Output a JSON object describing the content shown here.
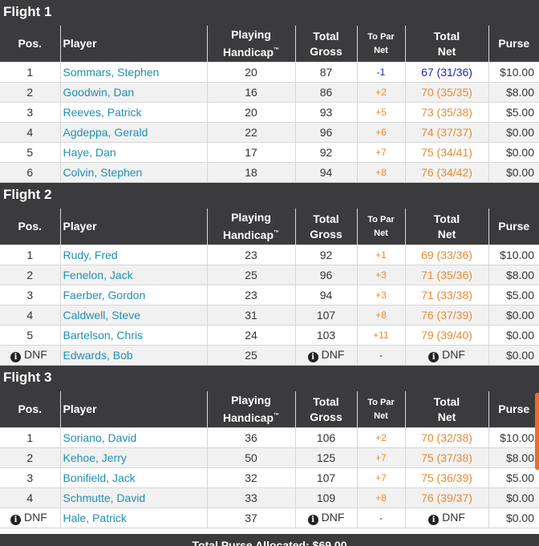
{
  "headers": {
    "pos": "Pos.",
    "player": "Player",
    "handicap_line1": "Playing",
    "handicap_line2": "Handicap",
    "handicap_tm": "™",
    "gross_line1": "Total",
    "gross_line2": "Gross",
    "topar_line1": "To Par",
    "topar_line2": "Net",
    "net_line1": "Total",
    "net_line2": "Net",
    "purse": "Purse"
  },
  "info_glyph": "i",
  "colors": {
    "header_bg": "#3b3b3d",
    "player_link": "#1f8fb3",
    "under_par": "#1e24b5",
    "over_par": "#e88b2f",
    "scroll_indicator": "#f06a2a"
  },
  "flights": [
    {
      "title": "Flight 1",
      "rows": [
        {
          "pos": "1",
          "player": "Sommars, Stephen",
          "handicap": "20",
          "gross": "87",
          "topar": "-1",
          "net": "67 (31/36)",
          "purse": "$10.00"
        },
        {
          "pos": "2",
          "player": "Goodwin, Dan",
          "handicap": "16",
          "gross": "86",
          "topar": "+2",
          "net": "70 (35/35)",
          "purse": "$8.00"
        },
        {
          "pos": "3",
          "player": "Reeves, Patrick",
          "handicap": "20",
          "gross": "93",
          "topar": "+5",
          "net": "73 (35/38)",
          "purse": "$5.00"
        },
        {
          "pos": "4",
          "player": "Agdeppa, Gerald",
          "handicap": "22",
          "gross": "96",
          "topar": "+6",
          "net": "74 (37/37)",
          "purse": "$0.00"
        },
        {
          "pos": "5",
          "player": "Haye, Dan",
          "handicap": "17",
          "gross": "92",
          "topar": "+7",
          "net": "75 (34/41)",
          "purse": "$0.00"
        },
        {
          "pos": "6",
          "player": "Colvin, Stephen",
          "handicap": "18",
          "gross": "94",
          "topar": "+8",
          "net": "76 (34/42)",
          "purse": "$0.00"
        }
      ]
    },
    {
      "title": "Flight 2",
      "rows": [
        {
          "pos": "1",
          "player": "Rudy, Fred",
          "handicap": "23",
          "gross": "92",
          "topar": "+1",
          "net": "69 (33/36)",
          "purse": "$10.00"
        },
        {
          "pos": "2",
          "player": "Fenelon, Jack",
          "handicap": "25",
          "gross": "96",
          "topar": "+3",
          "net": "71 (35/36)",
          "purse": "$8.00"
        },
        {
          "pos": "3",
          "player": "Faerber, Gordon",
          "handicap": "23",
          "gross": "94",
          "topar": "+3",
          "net": "71 (33/38)",
          "purse": "$5.00"
        },
        {
          "pos": "4",
          "player": "Caldwell, Steve",
          "handicap": "31",
          "gross": "107",
          "topar": "+8",
          "net": "76 (37/39)",
          "purse": "$0.00"
        },
        {
          "pos": "5",
          "player": "Bartelson, Chris",
          "handicap": "24",
          "gross": "103",
          "topar": "+11",
          "net": "79 (39/40)",
          "purse": "$0.00"
        },
        {
          "pos": "DNF",
          "player": "Edwards, Bob",
          "handicap": "25",
          "gross": "DNF",
          "topar": "-",
          "net": "DNF",
          "purse": "$0.00",
          "dnf": true
        }
      ]
    },
    {
      "title": "Flight 3",
      "rows": [
        {
          "pos": "1",
          "player": "Soriano, David",
          "handicap": "36",
          "gross": "106",
          "topar": "+2",
          "net": "70 (32/38)",
          "purse": "$10.00"
        },
        {
          "pos": "2",
          "player": "Kehoe, Jerry",
          "handicap": "50",
          "gross": "125",
          "topar": "+7",
          "net": "75 (37/38)",
          "purse": "$8.00"
        },
        {
          "pos": "3",
          "player": "Bonifield, Jack",
          "handicap": "32",
          "gross": "107",
          "topar": "+7",
          "net": "75 (36/39)",
          "purse": "$5.00"
        },
        {
          "pos": "4",
          "player": "Schmutte, David",
          "handicap": "33",
          "gross": "109",
          "topar": "+8",
          "net": "76 (39/37)",
          "purse": "$0.00"
        },
        {
          "pos": "DNF",
          "player": "Hale, Patrick",
          "handicap": "37",
          "gross": "DNF",
          "topar": "-",
          "net": "DNF",
          "purse": "$0.00",
          "dnf": true
        }
      ]
    }
  ],
  "footer": {
    "label": "Total Purse Allocated: $69.00"
  }
}
